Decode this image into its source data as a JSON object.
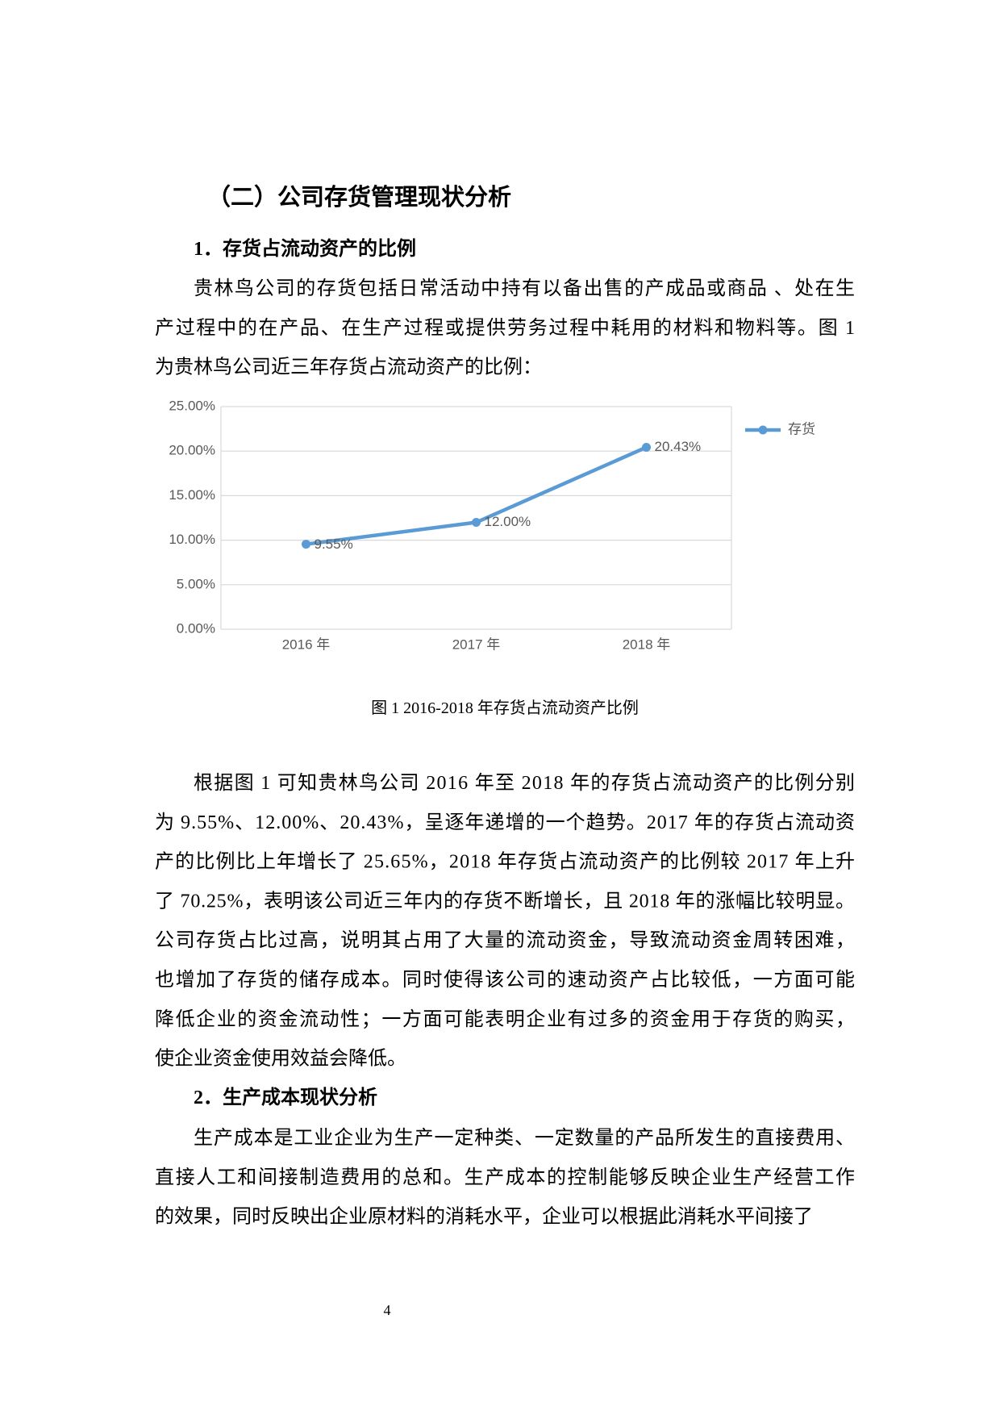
{
  "heading": "（二）公司存货管理现状分析",
  "section1": {
    "title": "1．存货占流动资产的比例",
    "paragraph": [
      "贵林鸟公司的存货包括日常活动中持有以备出售的产成品或商品 、处在生",
      "产过程中的在产品、在生产过程或提供劳务过程中耗用的材料和物料等。图 1",
      "为贵林鸟公司近三年存货占流动资产的比例："
    ]
  },
  "chart_data": {
    "type": "line",
    "categories": [
      "2016 年",
      "2017 年",
      "2018 年"
    ],
    "series": [
      {
        "name": "存货",
        "color": "#5b9bd5",
        "values": [
          9.55,
          12.0,
          20.43
        ],
        "value_labels": [
          "9.55%",
          "12.00%",
          "20.43%"
        ]
      }
    ],
    "ylim": [
      0,
      25
    ],
    "yticks": [
      {
        "value": 0,
        "label": "0.00%"
      },
      {
        "value": 5,
        "label": "5.00%"
      },
      {
        "value": 10,
        "label": "10.00%"
      },
      {
        "value": 15,
        "label": "15.00%"
      },
      {
        "value": 20,
        "label": "20.00%"
      },
      {
        "value": 25,
        "label": "25.00%"
      }
    ],
    "grid": true,
    "legend": "right"
  },
  "caption": "图 1      2016-2018 年存货占流动资产比例",
  "analysis": [
    "根据图 1 可知贵林鸟公司 2016 年至 2018 年的存货占流动资产的比例分别",
    "为 9.55%、12.00%、20.43%，呈逐年递增的一个趋势。2017 年的存货占流动资",
    "产的比例比上年增长了 25.65%，2018 年存货占流动资产的比例较 2017 年上升",
    "了 70.25%，表明该公司近三年内的存货不断增长，且 2018 年的涨幅比较明显。",
    "公司存货占比过高，说明其占用了大量的流动资金，导致流动资金周转困难，",
    "也增加了存货的储存成本。同时使得该公司的速动资产占比较低，一方面可能",
    "降低企业的资金流动性；一方面可能表明企业有过多的资金用于存货的购买，",
    "使企业资金使用效益会降低。"
  ],
  "section2": {
    "title": "2．生产成本现状分析",
    "paragraph": [
      "生产成本是工业企业为生产一定种类、一定数量的产品所发生的直接费用、",
      "直接人工和间接制造费用的总和。生产成本的控制能够反映企业生产经营工作",
      "的效果，同时反映出企业原材料的消耗水平，企业可以根据此消耗水平间接了"
    ]
  },
  "page_number": "4"
}
